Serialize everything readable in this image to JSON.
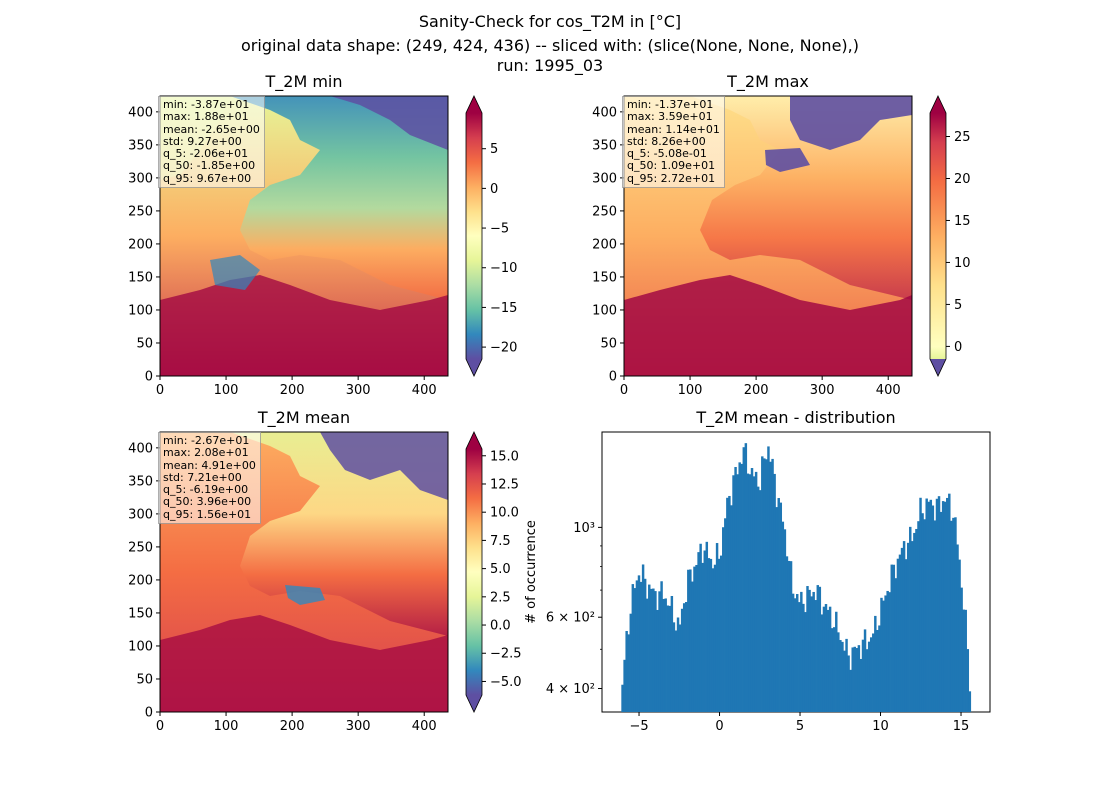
{
  "header": {
    "line1": "Sanity-Check for cos_T2M in [°C]",
    "line2": "original data shape: (249, 424, 436) -- sliced with: (slice(None, None, None),)",
    "line3": "run: 1995_03"
  },
  "panels": {
    "min": {
      "title": "T_2M min",
      "stats": [
        "min: -3.87e+01",
        "max: 1.88e+01",
        "mean: -2.65e+00",
        "std: 9.27e+00",
        "q_5: -2.06e+01",
        "q_50: -1.85e+00",
        "q_95: 9.67e+00"
      ],
      "colorbar_ticks": [
        "5",
        "0",
        "−5",
        "−10",
        "−15",
        "−20"
      ],
      "colorbar_range": [
        -21.5,
        9.5
      ]
    },
    "max": {
      "title": "T_2M max",
      "stats": [
        "min: -1.37e+01",
        "max: 3.59e+01",
        "mean: 1.14e+01",
        "std: 8.26e+00",
        "q_5: -5.08e-01",
        "q_50: 1.09e+01",
        "q_95: 2.72e+01"
      ],
      "colorbar_ticks": [
        "25",
        "20",
        "15",
        "10",
        "5",
        "0"
      ],
      "colorbar_range": [
        -1.5,
        27.8
      ]
    },
    "mean": {
      "title": "T_2M mean",
      "stats": [
        "min: -2.67e+01",
        "max: 2.08e+01",
        "mean: 4.91e+00",
        "std: 7.21e+00",
        "q_5: -6.19e+00",
        "q_50: 3.96e+00",
        "q_95: 1.56e+01"
      ],
      "colorbar_ticks": [
        "15.0",
        "12.5",
        "10.0",
        "7.5",
        "5.0",
        "2.5",
        "0.0",
        "−2.5",
        "−5.0"
      ],
      "colorbar_range": [
        -6.2,
        15.6
      ]
    },
    "hist": {
      "title": "T_2M mean - distribution",
      "ylabel": "# of occurrence"
    }
  },
  "map_axes": {
    "xticks": [
      "0",
      "100",
      "200",
      "300",
      "400"
    ],
    "yticks": [
      "0",
      "50",
      "100",
      "150",
      "200",
      "250",
      "300",
      "350",
      "400"
    ],
    "xrange": [
      0,
      436
    ],
    "yrange": [
      0,
      424
    ]
  },
  "colormap": "Spectral_r",
  "chart_data": {
    "type": "bar",
    "title": "T_2M mean - distribution",
    "xlabel": "",
    "ylabel": "# of occurrence",
    "yscale": "log",
    "xlim": [
      -7.3,
      16.8
    ],
    "ylim": [
      350,
      1720
    ],
    "xticks": [
      "−5",
      "0",
      "5",
      "10",
      "15"
    ],
    "yticks": [
      "4 × 10²",
      "6 × 10²",
      "10³"
    ],
    "color": "#1f77b4",
    "bin_x": [
      -6.1,
      -5.5,
      -5.0,
      -4.5,
      -4.0,
      -3.5,
      -3.0,
      -2.5,
      -2.0,
      -1.5,
      -1.0,
      -0.5,
      0.0,
      0.5,
      1.0,
      1.5,
      2.0,
      2.5,
      3.0,
      3.5,
      4.0,
      4.5,
      5.0,
      5.5,
      6.0,
      6.5,
      7.0,
      7.5,
      8.0,
      8.5,
      9.0,
      9.5,
      10.0,
      10.5,
      11.0,
      11.5,
      12.0,
      12.5,
      13.0,
      13.5,
      14.0,
      14.5,
      15.0,
      15.6
    ],
    "bin_y": [
      380,
      650,
      780,
      720,
      680,
      690,
      630,
      560,
      730,
      810,
      900,
      820,
      850,
      1150,
      1350,
      1550,
      1350,
      1300,
      1600,
      1250,
      1000,
      720,
      650,
      680,
      700,
      640,
      600,
      540,
      480,
      500,
      520,
      540,
      620,
      720,
      820,
      900,
      950,
      1100,
      1150,
      1120,
      1180,
      1100,
      750,
      380
    ]
  }
}
